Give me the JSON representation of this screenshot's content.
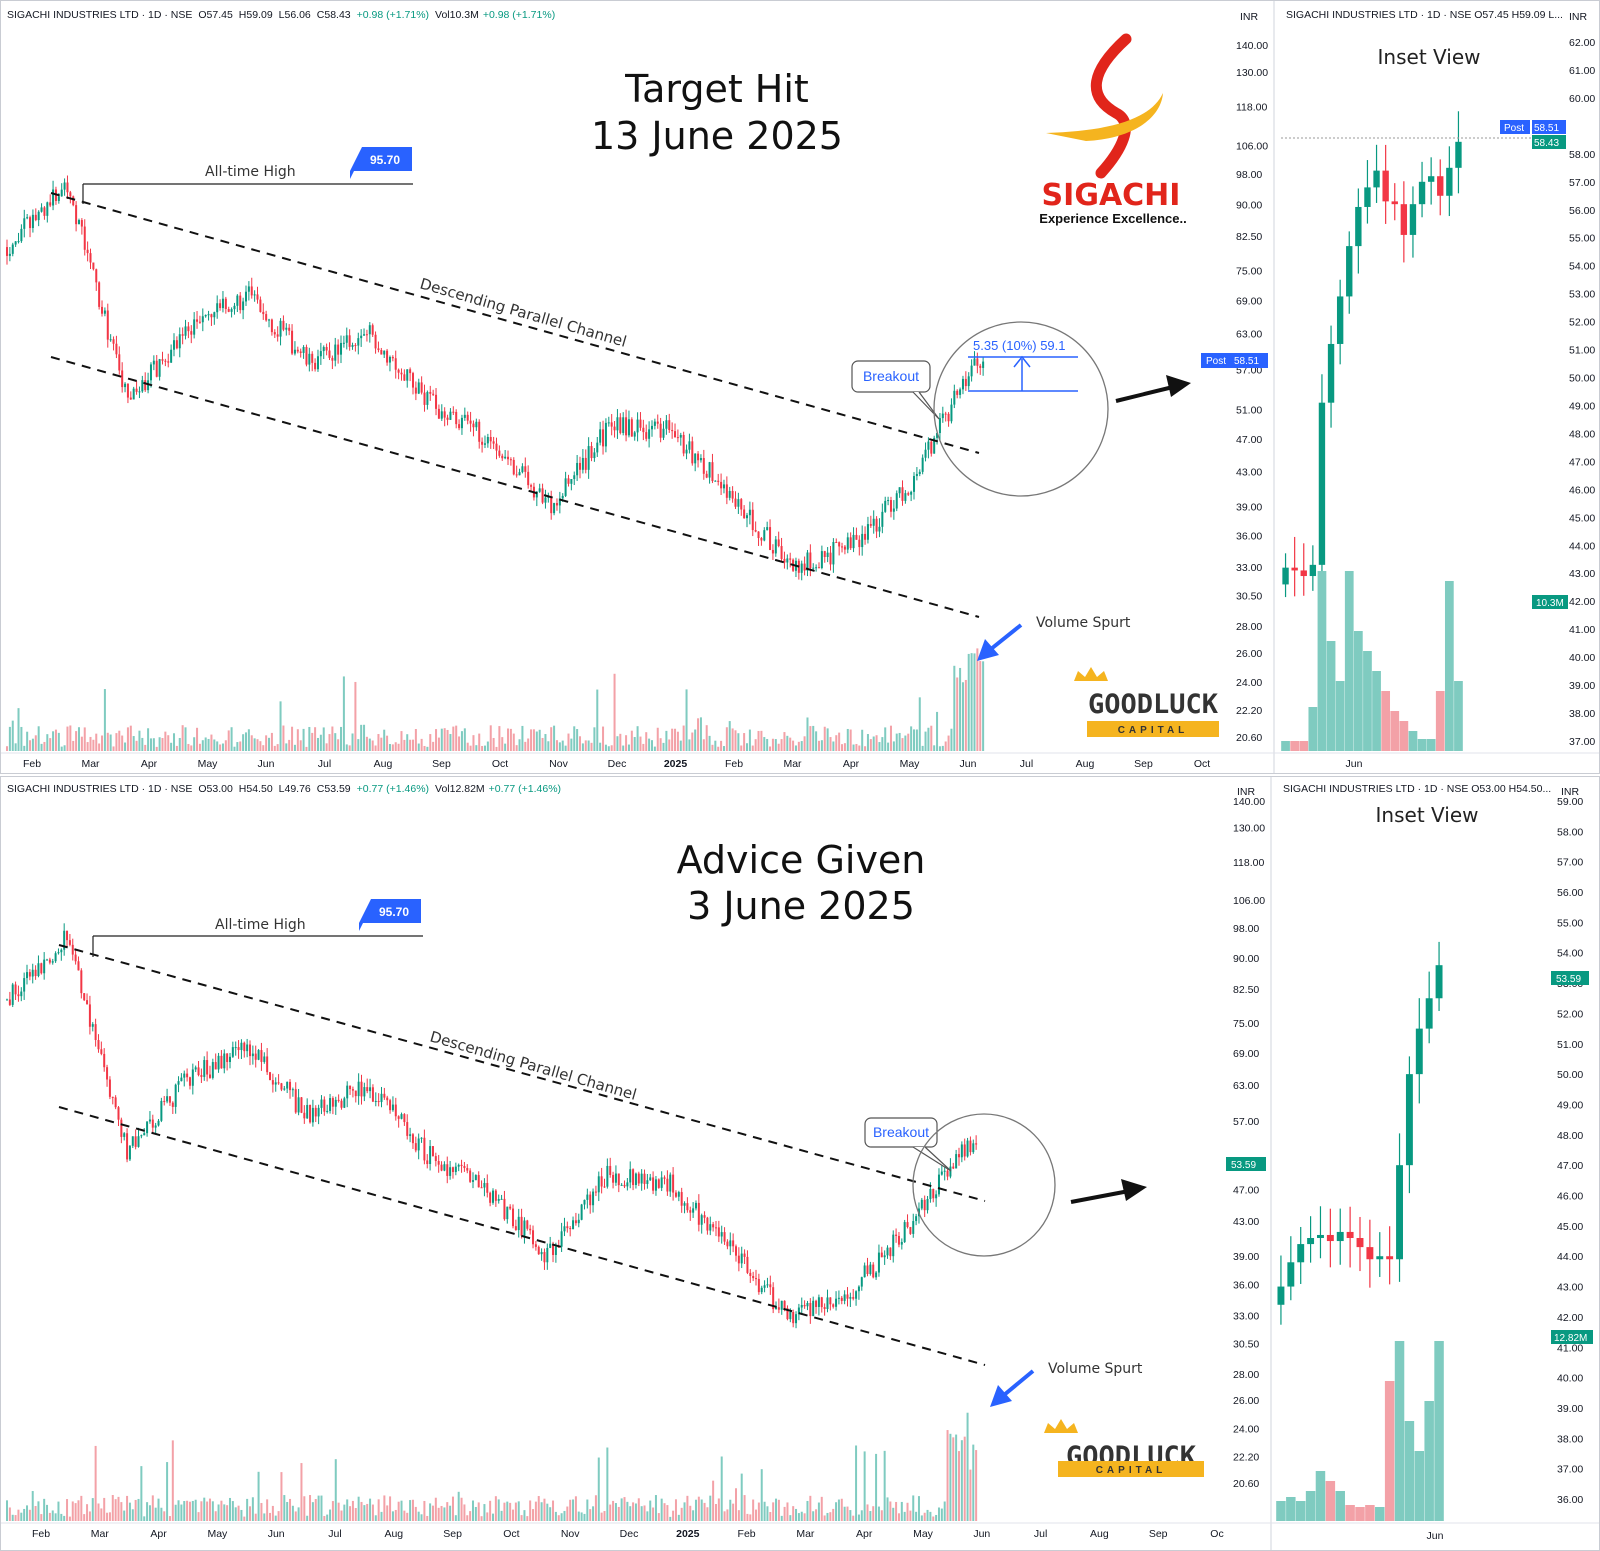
{
  "colors": {
    "up": "#089981",
    "down": "#f23645",
    "vol_up": "#7fcbc0",
    "vol_down": "#f3a1a7",
    "accent_blue": "#2962ff",
    "gold": "#f5b41f",
    "logo_red": "#e1251b"
  },
  "panels": [
    {
      "id": "top",
      "header": {
        "symbol": "SIGACHI INDUSTRIES LTD · 1D · NSE",
        "open": "O57.45",
        "high": "H59.09",
        "low": "L56.06",
        "close": "C58.43",
        "change": "+0.98 (+1.71%)",
        "volume": "Vol10.3M",
        "vol_change": "+0.98 (+1.71%)"
      },
      "inset_header": "SIGACHI INDUSTRIES LTD · 1D · NSE  O57.45  H59.09  L...",
      "currency": "INR",
      "title_line1": "Target Hit",
      "title_line2": "13 June 2025",
      "inset_title": "Inset View",
      "ath_label": "All-time High",
      "ath_value": "95.70",
      "channel_label": "Descending Parallel Channel",
      "breakout_label": "Breakout",
      "target_label": "5.35 (10%) 59.1",
      "volume_spurt_label": "Volume Spurt",
      "price_ticks": [
        "140.00",
        "130.00",
        "118.00",
        "106.00",
        "98.00",
        "90.00",
        "82.50",
        "75.00",
        "69.00",
        "63.00",
        "57.00",
        "51.00",
        "47.00",
        "43.00",
        "39.00",
        "36.00",
        "33.00",
        "30.50",
        "28.00",
        "26.00",
        "24.00",
        "22.20",
        "20.60"
      ],
      "inset_ticks": [
        "62.00",
        "61.00",
        "60.00",
        "58.00",
        "57.00",
        "56.00",
        "55.00",
        "54.00",
        "53.00",
        "52.00",
        "51.00",
        "50.00",
        "49.00",
        "48.00",
        "47.00",
        "46.00",
        "45.00",
        "44.00",
        "43.00",
        "42.00",
        "41.00",
        "40.00",
        "39.00",
        "38.00",
        "37.00"
      ],
      "months": [
        "Feb",
        "Mar",
        "Apr",
        "May",
        "Jun",
        "Jul",
        "Aug",
        "Sep",
        "Oct",
        "Nov",
        "Dec",
        "2025",
        "Feb",
        "Mar",
        "Apr",
        "May",
        "Jun",
        "Jul",
        "Aug",
        "Sep",
        "Oct"
      ],
      "inset_month": "Jun",
      "post_badge": "Post",
      "post_price": "58.51",
      "last_price": "58.43",
      "volume_badge": "10.3M"
    },
    {
      "id": "bottom",
      "header": {
        "symbol": "SIGACHI INDUSTRIES LTD · 1D · NSE",
        "open": "O53.00",
        "high": "H54.50",
        "low": "L49.76",
        "close": "C53.59",
        "change": "+0.77 (+1.46%)",
        "volume": "Vol12.82M",
        "vol_change": "+0.77 (+1.46%)"
      },
      "inset_header": "SIGACHI INDUSTRIES LTD · 1D · NSE  O53.00  H54.50...",
      "currency": "INR",
      "title_line1": "Advice Given",
      "title_line2": "3 June 2025",
      "inset_title": "Inset View",
      "ath_label": "All-time High",
      "ath_value": "95.70",
      "channel_label": "Descending Parallel Channel",
      "breakout_label": "Breakout",
      "volume_spurt_label": "Volume Spurt",
      "price_ticks": [
        "140.00",
        "130.00",
        "118.00",
        "106.00",
        "98.00",
        "90.00",
        "82.50",
        "75.00",
        "69.00",
        "63.00",
        "57.00",
        "51.00",
        "47.00",
        "43.00",
        "39.00",
        "36.00",
        "33.00",
        "30.50",
        "28.00",
        "26.00",
        "24.00",
        "22.20",
        "20.60"
      ],
      "inset_ticks": [
        "59.00",
        "58.00",
        "57.00",
        "56.00",
        "55.00",
        "54.00",
        "53.00",
        "52.00",
        "51.00",
        "50.00",
        "49.00",
        "48.00",
        "47.00",
        "46.00",
        "45.00",
        "44.00",
        "43.00",
        "42.00",
        "41.00",
        "40.00",
        "39.00",
        "38.00",
        "37.00",
        "36.00"
      ],
      "months": [
        "Feb",
        "Mar",
        "Apr",
        "May",
        "Jun",
        "Jul",
        "Aug",
        "Sep",
        "Oct",
        "Nov",
        "Dec",
        "2025",
        "Feb",
        "Mar",
        "Apr",
        "May",
        "Jun",
        "Jul",
        "Aug",
        "Sep",
        "Oc"
      ],
      "inset_month": "Jun",
      "last_price": "53.59",
      "volume_badge": "12.82M"
    }
  ],
  "logo": {
    "name": "SIGACHI",
    "tagline": "Experience Excellence.."
  },
  "watermark": {
    "name": "GOODLUCK",
    "sub": "CAPITAL"
  },
  "chart_data": [
    {
      "type": "candlestick",
      "title": "Target Hit 13 June 2025",
      "y_scale": "log",
      "ylim": [
        20.6,
        140
      ],
      "x_range": [
        "Feb 2024",
        "Oct 2025"
      ],
      "annotations": {
        "all_time_high": 95.7,
        "breakout": "Descending Parallel Channel",
        "target_move": "5.35 (10%)",
        "target": 59.1
      },
      "anchors": [
        {
          "x": "Feb 2024",
          "close": 80
        },
        {
          "x": "Mar 2024",
          "close": 95.7
        },
        {
          "x": "Apr 2024",
          "close": 52
        },
        {
          "x": "May 2024",
          "close": 64
        },
        {
          "x": "Jun 2024",
          "close": 70
        },
        {
          "x": "Jul 2024",
          "close": 58
        },
        {
          "x": "Aug 2024",
          "close": 63
        },
        {
          "x": "Sep 2024",
          "close": 52
        },
        {
          "x": "Oct 2024",
          "close": 47
        },
        {
          "x": "Nov 2024",
          "close": 39
        },
        {
          "x": "Dec 2024",
          "close": 49
        },
        {
          "x": "Jan 2025",
          "close": 48
        },
        {
          "x": "Feb 2025",
          "close": 40
        },
        {
          "x": "Mar 2025",
          "close": 33
        },
        {
          "x": "Apr 2025",
          "close": 35
        },
        {
          "x": "May 2025",
          "close": 42
        },
        {
          "x": "Jun 2025",
          "close": 58.43
        }
      ],
      "inset": {
        "closes": [
          43.2,
          43.1,
          42.9,
          43.3,
          49.1,
          51.2,
          52.9,
          54.7,
          56.1,
          56.8,
          57.4,
          56.3,
          56.2,
          55.1,
          56.2,
          57.0,
          57.2,
          56.5,
          57.5,
          58.43
        ],
        "volume_level": [
          0.05,
          0.05,
          0.05,
          0.22,
          0.9,
          0.55,
          0.35,
          0.9,
          0.6,
          0.5,
          0.4,
          0.3,
          0.2,
          0.15,
          0.1,
          0.06,
          0.06,
          0.3,
          0.85,
          0.35
        ],
        "last_volume": "10.3M"
      }
    },
    {
      "type": "candlestick",
      "title": "Advice Given 3 June 2025",
      "y_scale": "log",
      "ylim": [
        20.6,
        140
      ],
      "x_range": [
        "Feb 2024",
        "Oct 2025"
      ],
      "annotations": {
        "all_time_high": 95.7,
        "breakout": "Descending Parallel Channel"
      },
      "anchors": [
        {
          "x": "Feb 2024",
          "close": 80
        },
        {
          "x": "Mar 2024",
          "close": 95.7
        },
        {
          "x": "Apr 2024",
          "close": 52
        },
        {
          "x": "May 2024",
          "close": 64
        },
        {
          "x": "Jun 2024",
          "close": 70
        },
        {
          "x": "Jul 2024",
          "close": 58
        },
        {
          "x": "Aug 2024",
          "close": 63
        },
        {
          "x": "Sep 2024",
          "close": 52
        },
        {
          "x": "Oct 2024",
          "close": 47
        },
        {
          "x": "Nov 2024",
          "close": 39
        },
        {
          "x": "Dec 2024",
          "close": 49
        },
        {
          "x": "Jan 2025",
          "close": 48
        },
        {
          "x": "Feb 2025",
          "close": 40
        },
        {
          "x": "Mar 2025",
          "close": 33
        },
        {
          "x": "Apr 2025",
          "close": 35
        },
        {
          "x": "May 2025",
          "close": 42
        },
        {
          "x": "Jun 2025",
          "close": 53.59
        }
      ],
      "inset": {
        "closes": [
          43.0,
          43.8,
          44.4,
          44.6,
          44.7,
          44.5,
          44.8,
          44.6,
          44.3,
          43.9,
          44.0,
          43.9,
          47.0,
          50.0,
          51.5,
          52.5,
          53.59
        ],
        "volume_level": [
          0.1,
          0.12,
          0.1,
          0.15,
          0.25,
          0.2,
          0.15,
          0.08,
          0.07,
          0.08,
          0.07,
          0.7,
          0.9,
          0.5,
          0.35,
          0.6,
          0.9
        ],
        "last_volume": "12.82M"
      }
    }
  ]
}
